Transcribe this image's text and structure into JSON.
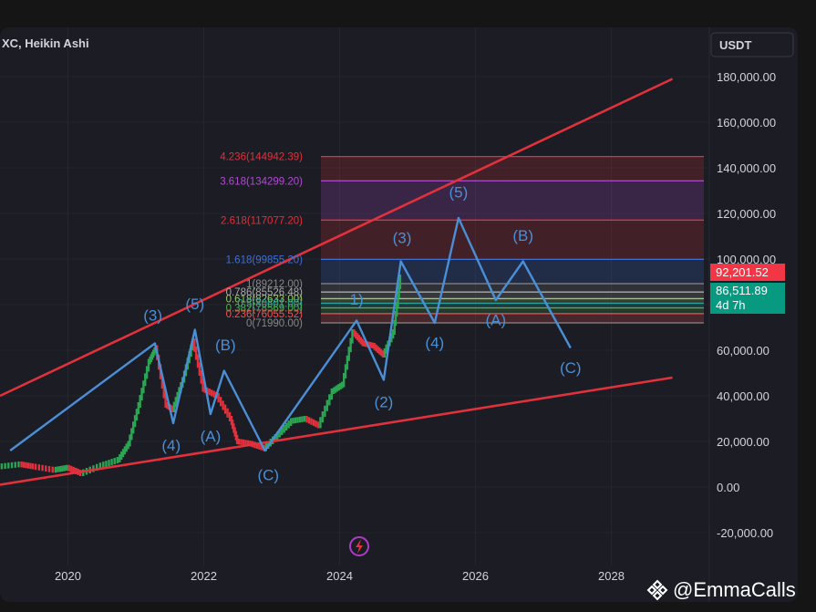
{
  "header": {
    "symbol_label": "XC, Heikin Ashi",
    "currency_button": "USDT"
  },
  "price_tags": {
    "current": "92,201.52",
    "secondary": "86,511.89",
    "countdown": "4d 7h"
  },
  "watermark": {
    "handle": "@EmmaCalls",
    "icon": "binance-square-icon"
  },
  "colors": {
    "background": "#1b1c24",
    "trendline": "#e0313c",
    "wave_path": "#4a8fd6",
    "candle_up": "#2aa653",
    "candle_down": "#e0313c",
    "price_tag_red": "#f23645",
    "price_tag_green": "#089981"
  },
  "chart_data": {
    "type": "line",
    "title": "",
    "xlabel": "",
    "ylabel": "",
    "x_ticks": [
      "2020",
      "2022",
      "2024",
      "2026",
      "2028"
    ],
    "y_ticks": [
      "180,000.00",
      "160,000.00",
      "140,000.00",
      "120,000.00",
      "100,000.00",
      "80,000.00",
      "60,000.00",
      "40,000.00",
      "20,000.00",
      "0.00",
      "-20,000.00"
    ],
    "ylim": [
      -20000,
      180000
    ],
    "fib_levels": [
      {
        "label": "4.236(144942.39)",
        "value": 144942.39,
        "color": "#e0313c"
      },
      {
        "label": "3.618(134299.20)",
        "value": 134299.2,
        "color": "#b34ad4"
      },
      {
        "label": "2.618(117077.20)",
        "value": 117077.2,
        "color": "#e0313c"
      },
      {
        "label": "1.618(99855.20)",
        "value": 99855.2,
        "color": "#3e6fd6"
      },
      {
        "label": "1(89212.00)",
        "value": 89212.0,
        "color": "#888888"
      },
      {
        "label": "0.786(85526.48)",
        "value": 85526.48,
        "color": "#aaaaaa"
      },
      {
        "label": "0.618(82633.00)",
        "value": 82633.0,
        "color": "#9ccc65"
      },
      {
        "label": "0.5(80601.00)",
        "value": 80601.0,
        "color": "#26a69a"
      },
      {
        "label": "0.382(78569.00)",
        "value": 78569.0,
        "color": "#4caf50"
      },
      {
        "label": "0.236(76055.52)",
        "value": 76055.52,
        "color": "#ef5350"
      },
      {
        "label": "0(71990.00)",
        "value": 71990.0,
        "color": "#888888"
      }
    ],
    "series": [
      {
        "values": [
          {
            "x": 2019.15,
            "y": 16000
          },
          {
            "x": 2021.28,
            "y": 63000
          },
          {
            "x": 2021.55,
            "y": 28000
          },
          {
            "x": 2021.87,
            "y": 69000
          },
          {
            "x": 2022.1,
            "y": 32000
          },
          {
            "x": 2022.3,
            "y": 51000
          },
          {
            "x": 2022.9,
            "y": 16000
          },
          {
            "x": 2024.25,
            "y": 73000
          },
          {
            "x": 2024.65,
            "y": 47000
          },
          {
            "x": 2024.9,
            "y": 99000
          },
          {
            "x": 2025.4,
            "y": 72000
          },
          {
            "x": 2025.75,
            "y": 118000
          },
          {
            "x": 2026.3,
            "y": 82000
          },
          {
            "x": 2026.7,
            "y": 99000
          },
          {
            "x": 2027.4,
            "y": 61000
          }
        ]
      }
    ],
    "trendlines": [
      {
        "name": "upper",
        "from": {
          "x": 2019.0,
          "y": 40000
        },
        "to": {
          "x": 2028.9,
          "y": 179000
        }
      },
      {
        "name": "lower",
        "from": {
          "x": 2019.0,
          "y": 1000
        },
        "to": {
          "x": 2028.9,
          "y": 48000
        }
      }
    ],
    "wave_labels": [
      {
        "text": "(3)",
        "x": 2021.25,
        "y": 73000
      },
      {
        "text": "(5)",
        "x": 2021.87,
        "y": 78000
      },
      {
        "text": "(B)",
        "x": 2022.32,
        "y": 60000
      },
      {
        "text": "(4)",
        "x": 2021.52,
        "y": 16000
      },
      {
        "text": "(A)",
        "x": 2022.1,
        "y": 20000
      },
      {
        "text": "(C)",
        "x": 2022.95,
        "y": 3000
      },
      {
        "text": "1)",
        "x": 2024.25,
        "y": 80000
      },
      {
        "text": "(2)",
        "x": 2024.65,
        "y": 35000
      },
      {
        "text": "(3)",
        "x": 2024.92,
        "y": 107000
      },
      {
        "text": "(4)",
        "x": 2025.4,
        "y": 61000
      },
      {
        "text": "(5)",
        "x": 2025.75,
        "y": 127000
      },
      {
        "text": "(A)",
        "x": 2026.3,
        "y": 71000
      },
      {
        "text": "(B)",
        "x": 2026.7,
        "y": 108000
      },
      {
        "text": "(C)",
        "x": 2027.4,
        "y": 50000
      }
    ],
    "candles_close": [
      {
        "x": 2019.0,
        "y": 9000
      },
      {
        "x": 2019.3,
        "y": 10000
      },
      {
        "x": 2019.5,
        "y": 9000
      },
      {
        "x": 2019.8,
        "y": 7500
      },
      {
        "x": 2020.0,
        "y": 8500
      },
      {
        "x": 2020.2,
        "y": 6000
      },
      {
        "x": 2020.5,
        "y": 9500
      },
      {
        "x": 2020.75,
        "y": 12000
      },
      {
        "x": 2020.9,
        "y": 19000
      },
      {
        "x": 2021.05,
        "y": 36000
      },
      {
        "x": 2021.2,
        "y": 55000
      },
      {
        "x": 2021.3,
        "y": 61000
      },
      {
        "x": 2021.45,
        "y": 36000
      },
      {
        "x": 2021.55,
        "y": 34000
      },
      {
        "x": 2021.7,
        "y": 47000
      },
      {
        "x": 2021.85,
        "y": 64000
      },
      {
        "x": 2022.0,
        "y": 43000
      },
      {
        "x": 2022.2,
        "y": 40000
      },
      {
        "x": 2022.4,
        "y": 30000
      },
      {
        "x": 2022.5,
        "y": 20000
      },
      {
        "x": 2022.7,
        "y": 19000
      },
      {
        "x": 2022.9,
        "y": 17000
      },
      {
        "x": 2023.1,
        "y": 23000
      },
      {
        "x": 2023.3,
        "y": 29000
      },
      {
        "x": 2023.5,
        "y": 30000
      },
      {
        "x": 2023.7,
        "y": 27000
      },
      {
        "x": 2023.9,
        "y": 42000
      },
      {
        "x": 2024.05,
        "y": 45000
      },
      {
        "x": 2024.2,
        "y": 68000
      },
      {
        "x": 2024.35,
        "y": 63000
      },
      {
        "x": 2024.5,
        "y": 62000
      },
      {
        "x": 2024.65,
        "y": 58000
      },
      {
        "x": 2024.8,
        "y": 68000
      },
      {
        "x": 2024.9,
        "y": 92000
      }
    ]
  }
}
